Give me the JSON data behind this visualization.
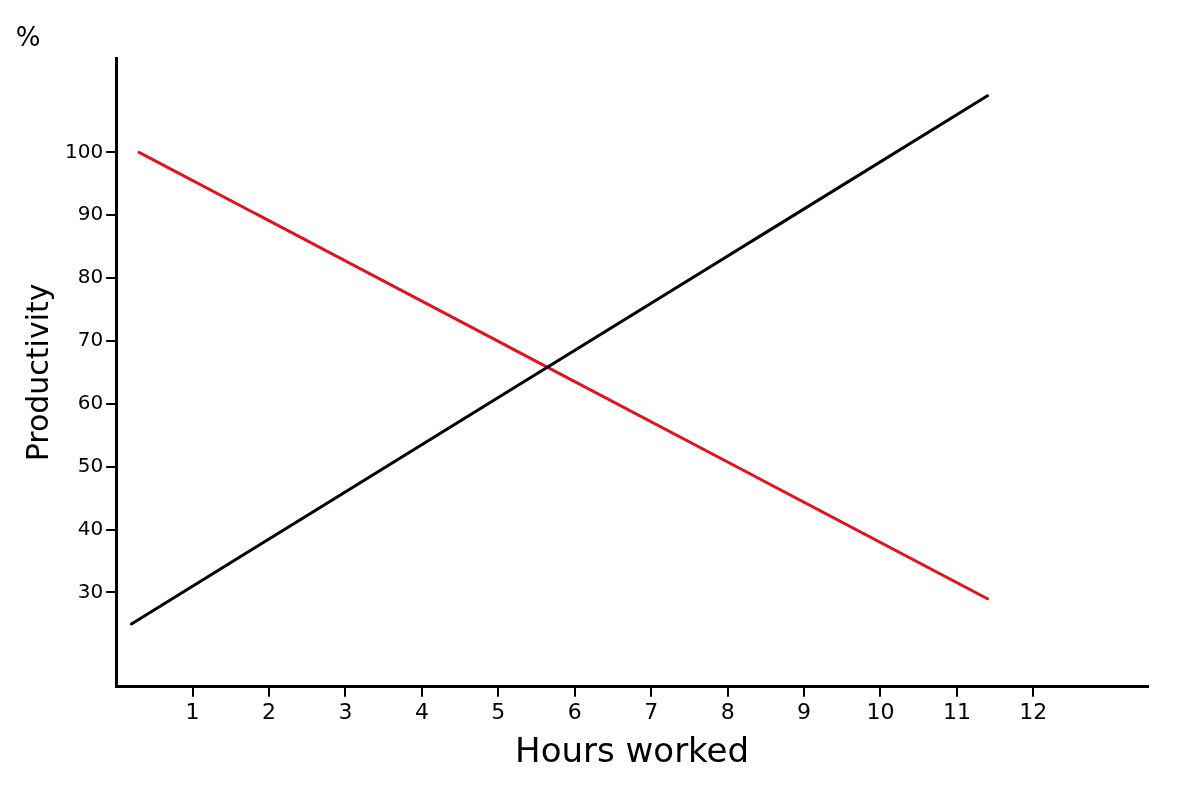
{
  "chart_data": {
    "type": "line",
    "xlabel": "Hours worked",
    "ylabel": "Productivity",
    "annotations": [
      "%"
    ],
    "xlim": [
      0,
      13.5
    ],
    "xticks": [
      1,
      2,
      3,
      4,
      5,
      6,
      7,
      8,
      9,
      10,
      11,
      12
    ],
    "ylim": [
      15,
      115
    ],
    "yticks": [
      30,
      40,
      50,
      60,
      70,
      80,
      90,
      100
    ],
    "grid": false,
    "legend": false,
    "marker": "none",
    "line_style": "solid",
    "series": [
      {
        "color": "#000000",
        "x": [
          0.2,
          11.4
        ],
        "values": [
          25,
          109
        ]
      },
      {
        "color": "#e0141e",
        "x": [
          0.3,
          11.4
        ],
        "values": [
          100,
          29
        ]
      }
    ]
  }
}
